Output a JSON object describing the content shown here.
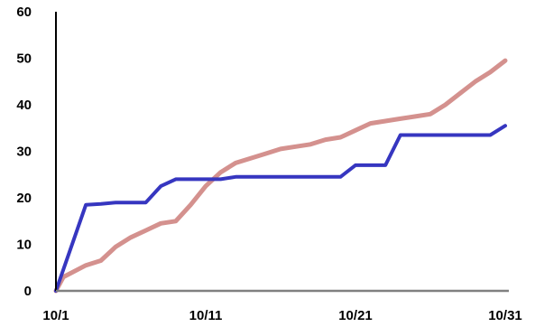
{
  "chart_data": {
    "type": "line",
    "title": "",
    "xlabel": "",
    "ylabel": "",
    "xlim": [
      1,
      31
    ],
    "ylim": [
      0,
      60
    ],
    "grid": false,
    "legend": "none",
    "y_ticks": [
      0,
      10,
      20,
      30,
      40,
      50,
      60
    ],
    "x_ticks": [
      {
        "day": 1,
        "label": "10/1"
      },
      {
        "day": 11,
        "label": "10/11"
      },
      {
        "day": 21,
        "label": "10/21"
      },
      {
        "day": 31,
        "label": "10/31"
      }
    ],
    "series": [
      {
        "color": "#d4918e",
        "points": [
          [
            1,
            0
          ],
          [
            1.5,
            3
          ],
          [
            3,
            5.5
          ],
          [
            4,
            6.5
          ],
          [
            5,
            9.5
          ],
          [
            6,
            11.5
          ],
          [
            7,
            13
          ],
          [
            8,
            14.5
          ],
          [
            9,
            15
          ],
          [
            10,
            18.5
          ],
          [
            11,
            22.5
          ],
          [
            12,
            25.5
          ],
          [
            13,
            27.5
          ],
          [
            14,
            28.5
          ],
          [
            15,
            29.5
          ],
          [
            16,
            30.5
          ],
          [
            17,
            31
          ],
          [
            18,
            31.5
          ],
          [
            19,
            32.5
          ],
          [
            20,
            33
          ],
          [
            21,
            34.5
          ],
          [
            22,
            36
          ],
          [
            23,
            36.5
          ],
          [
            24,
            37
          ],
          [
            25,
            37.5
          ],
          [
            26,
            38
          ],
          [
            27,
            40
          ],
          [
            28,
            42.5
          ],
          [
            29,
            45
          ],
          [
            30,
            47
          ],
          [
            31,
            49.5
          ]
        ]
      },
      {
        "color": "#3636c0",
        "points": [
          [
            1,
            0
          ],
          [
            3,
            18.5
          ],
          [
            4,
            18.7
          ],
          [
            5,
            19
          ],
          [
            6,
            19
          ],
          [
            7,
            19
          ],
          [
            8,
            22.5
          ],
          [
            9,
            24
          ],
          [
            10,
            24
          ],
          [
            11,
            24
          ],
          [
            12,
            24
          ],
          [
            13,
            24.5
          ],
          [
            14,
            24.5
          ],
          [
            15,
            24.5
          ],
          [
            16,
            24.5
          ],
          [
            17,
            24.5
          ],
          [
            18,
            24.5
          ],
          [
            19,
            24.5
          ],
          [
            20,
            24.5
          ],
          [
            21,
            27
          ],
          [
            22,
            27
          ],
          [
            23,
            27
          ],
          [
            24,
            33.5
          ],
          [
            25,
            33.5
          ],
          [
            26,
            33.5
          ],
          [
            27,
            33.5
          ],
          [
            28,
            33.5
          ],
          [
            29,
            33.5
          ],
          [
            30,
            33.5
          ],
          [
            31,
            35.5
          ]
        ]
      }
    ]
  }
}
